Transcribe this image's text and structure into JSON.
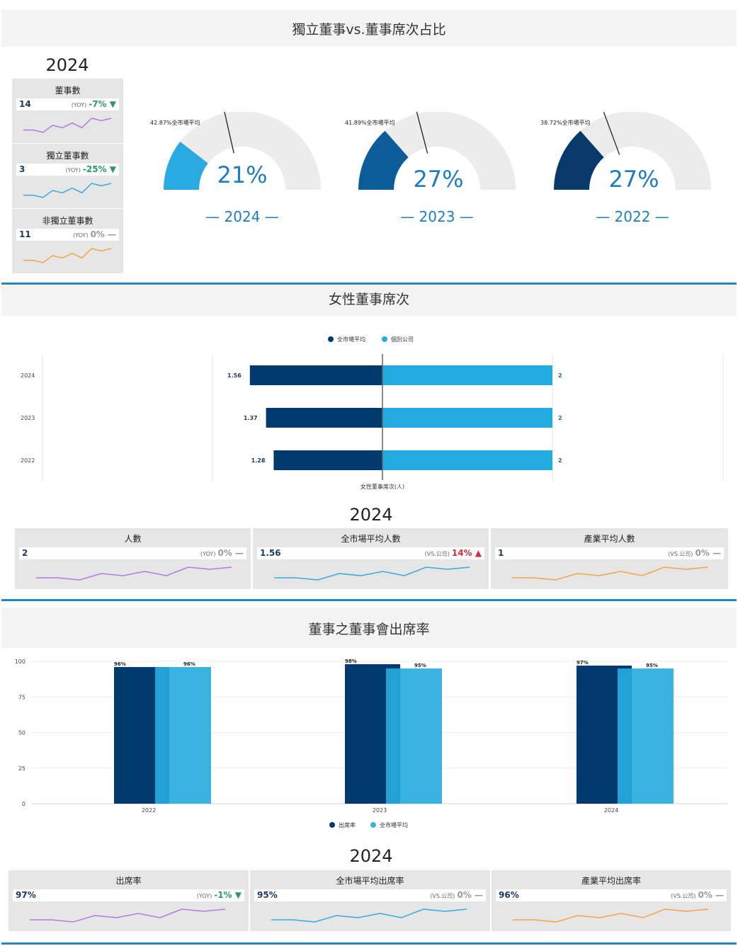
{
  "sections": {
    "independent": {
      "title": "獨立董事vs.董事席次占比"
    },
    "female": {
      "title": "女性董事席次"
    },
    "attendance": {
      "title": "董事之董事會出席率"
    }
  },
  "kpi_year": "2024",
  "board_kpis": [
    {
      "title": "董事數",
      "value": "14",
      "yoy_label": "(YOY)",
      "change": "-7%",
      "trend": "down",
      "color": "#b07be0",
      "spark": [
        4,
        4,
        3,
        6,
        5,
        7,
        5,
        9,
        8,
        9
      ]
    },
    {
      "title": "獨立董事數",
      "value": "3",
      "yoy_label": "(YOY)",
      "change": "-25%",
      "trend": "down",
      "color": "#3aa9dd",
      "spark": [
        4,
        4,
        3,
        6,
        5,
        7,
        5,
        9,
        8,
        9
      ]
    },
    {
      "title": "非獨立董事數",
      "value": "11",
      "yoy_label": "(YOY)",
      "change": "0%",
      "trend": "flat",
      "color": "#f5a44c",
      "spark": [
        4,
        4,
        3,
        6,
        5,
        7,
        5,
        9,
        8,
        9
      ]
    }
  ],
  "gauges": [
    {
      "year": "2024",
      "value_label": "21%",
      "value": 21,
      "avg": 42.87,
      "avg_label": "42.87%全市場平均",
      "color": "#29abe2"
    },
    {
      "year": "2023",
      "value_label": "27%",
      "value": 27,
      "avg": 41.89,
      "avg_label": "41.89%全市場平均",
      "color": "#0c5c9a"
    },
    {
      "year": "2022",
      "value_label": "27%",
      "value": 27,
      "avg": 38.72,
      "avg_label": "38.72%全市場平均",
      "color": "#073a6b"
    }
  ],
  "chart_data": [
    {
      "type": "bar",
      "orientation": "horizontal",
      "title": "女性董事席次",
      "categories": [
        "2024",
        "2023",
        "2022"
      ],
      "series": [
        {
          "name": "全市場平均",
          "values": [
            1.56,
            1.37,
            1.28
          ],
          "color": "#003a6e"
        },
        {
          "name": "個別公司",
          "values": [
            2,
            2,
            2
          ],
          "color": "#24ace0"
        }
      ],
      "xlabel": "女性董事席次(人)",
      "legend": "top"
    },
    {
      "type": "bar",
      "title": "董事之董事會出席率",
      "categories": [
        "2022",
        "2023",
        "2024"
      ],
      "series": [
        {
          "name": "出席率",
          "values": [
            96,
            98,
            97
          ],
          "labels": [
            "96%",
            "98%",
            "97%"
          ],
          "color": "#003a6e"
        },
        {
          "name": "全市場平均",
          "values": [
            96,
            95,
            95
          ],
          "labels": [
            "96%",
            "95%",
            "95%"
          ],
          "color": "#3bb3e0"
        }
      ],
      "yticks": [
        "100",
        "75",
        "50",
        "25",
        "0"
      ],
      "ylim": [
        0,
        100
      ],
      "legend": "bottom"
    }
  ],
  "female_kpis": {
    "year": "2024",
    "cards": [
      {
        "title": "人數",
        "value": "2",
        "label": "(YOY)",
        "change": "0%",
        "trend": "flat",
        "color": "#b07be0",
        "spark": [
          4,
          4,
          3,
          6,
          5,
          7,
          5,
          9,
          8,
          9
        ]
      },
      {
        "title": "全市場平均人數",
        "value": "1.56",
        "label": "(VS.公司)",
        "change": "14%",
        "trend": "up",
        "color": "#3aa9dd",
        "spark": [
          4,
          4,
          3,
          6,
          5,
          7,
          5,
          9,
          8,
          9
        ]
      },
      {
        "title": "產業平均人數",
        "value": "1",
        "label": "(VS.公司)",
        "change": "0%",
        "trend": "flat",
        "color": "#f5a44c",
        "spark": [
          4,
          4,
          3,
          6,
          5,
          7,
          5,
          9,
          8,
          9
        ]
      }
    ]
  },
  "attendance_kpis": {
    "year": "2024",
    "cards": [
      {
        "title": "出席率",
        "value": "97%",
        "label": "(YOY)",
        "change": "-1%",
        "trend": "down",
        "color": "#b07be0",
        "spark": [
          4,
          4,
          3,
          6,
          5,
          7,
          5,
          9,
          8,
          9
        ]
      },
      {
        "title": "全市場平均出席率",
        "value": "95%",
        "label": "(VS.公司)",
        "change": "0%",
        "trend": "flat",
        "color": "#3aa9dd",
        "spark": [
          4,
          4,
          3,
          6,
          5,
          7,
          5,
          9,
          8,
          9
        ]
      },
      {
        "title": "產業平均出席率",
        "value": "96%",
        "label": "(VS.公司)",
        "change": "0%",
        "trend": "flat",
        "color": "#f5a44c",
        "spark": [
          4,
          4,
          3,
          6,
          5,
          7,
          5,
          9,
          8,
          9
        ]
      }
    ]
  }
}
